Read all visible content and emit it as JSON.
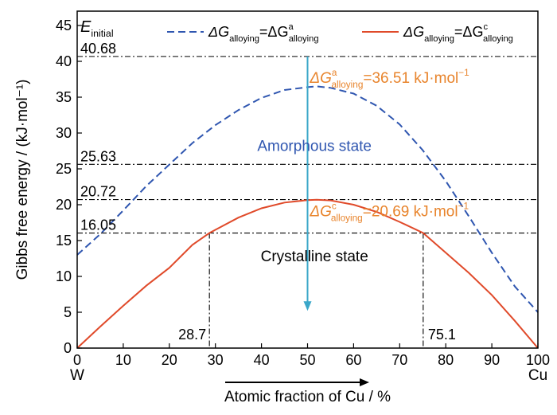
{
  "chart_data": {
    "type": "line",
    "xlabel": "Atomic fraction of Cu / %",
    "ylabel": "Gibbs free energy / (kJ·mol⁻¹)",
    "xlim": [
      0,
      100
    ],
    "ylim": [
      0,
      47
    ],
    "x_ticks": [
      "0",
      "10",
      "20",
      "30",
      "40",
      "50",
      "60",
      "70",
      "80",
      "90",
      "100"
    ],
    "y_ticks": [
      "0",
      "5",
      "10",
      "15",
      "20",
      "25",
      "30",
      "35",
      "40",
      "45"
    ],
    "x_end_labels": {
      "left": "W",
      "right": "Cu"
    },
    "grid": false,
    "legend_placement": "top",
    "series": [
      {
        "legend_main": "ΔG",
        "legend_sub": "alloying",
        "legend_eq": "=ΔG",
        "legend_sup": "a",
        "legend_sub2": "alloying",
        "style": "dashed",
        "color": "#2f56b0",
        "x": [
          0,
          5,
          10,
          15,
          20,
          25,
          30,
          35,
          40,
          45,
          50,
          52,
          55,
          60,
          65,
          70,
          75,
          80,
          85,
          90,
          95,
          100
        ],
        "y": [
          13.0,
          15.9,
          19.2,
          22.6,
          25.6,
          28.6,
          31.1,
          33.2,
          34.9,
          36.0,
          36.4,
          36.51,
          36.3,
          35.5,
          33.8,
          31.2,
          27.6,
          23.3,
          18.4,
          13.3,
          8.6,
          5.0
        ]
      },
      {
        "legend_main": "ΔG",
        "legend_sub": "alloying",
        "legend_eq": "=ΔG",
        "legend_sup": "c",
        "legend_sub2": "alloying",
        "style": "solid",
        "color": "#e04a2a",
        "x": [
          0,
          5,
          10,
          15,
          20,
          25,
          28.7,
          30,
          35,
          40,
          45,
          50,
          52,
          55,
          60,
          65,
          70,
          75.1,
          80,
          85,
          90,
          95,
          100
        ],
        "y": [
          0,
          3.0,
          5.9,
          8.7,
          11.2,
          14.4,
          16.05,
          16.5,
          18.2,
          19.5,
          20.3,
          20.65,
          20.69,
          20.6,
          20.0,
          19.0,
          17.6,
          16.05,
          13.3,
          10.5,
          7.4,
          3.8,
          0
        ]
      }
    ],
    "reference_lines": [
      {
        "y": 40.68,
        "label": "40.68"
      },
      {
        "y": 25.63,
        "label": "25.63"
      },
      {
        "y": 20.72,
        "label": "20.72"
      },
      {
        "y": 16.05,
        "label": "16.05"
      }
    ],
    "vertical_lines": [
      {
        "x": 28.7,
        "y_top": 16.05,
        "label": "28.7"
      },
      {
        "x": 75.1,
        "y_top": 16.05,
        "label": "75.1"
      }
    ],
    "e_initial": {
      "main": "E",
      "sub": "initial"
    },
    "annotations": {
      "amorphous_state": "Amorphous state",
      "crystalline_state": "Crystalline state",
      "dga_main": "ΔG",
      "dga_sup": "a",
      "dga_sub": "alloying",
      "dga_value": "=36.51 kJ·mol",
      "dga_exp": "−1",
      "dgc_main": "ΔG",
      "dgc_sup": "c",
      "dgc_sub": "alloying",
      "dgc_value": "=20.69 kJ·mol",
      "dgc_exp": "−1"
    },
    "arrow": {
      "x": 50,
      "y_from": 40.68,
      "y_to": 5.2,
      "color": "#3aa7c9"
    },
    "colors": {
      "amorphous_text": "#2f56b0",
      "value_text": "#e8842c",
      "axis": "#000000"
    }
  }
}
